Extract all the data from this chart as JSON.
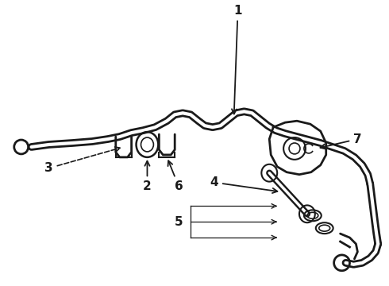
{
  "bg_color": "#ffffff",
  "line_color": "#1a1a1a",
  "label_fontsize": 11,
  "figsize": [
    4.9,
    3.6
  ],
  "dpi": 100
}
